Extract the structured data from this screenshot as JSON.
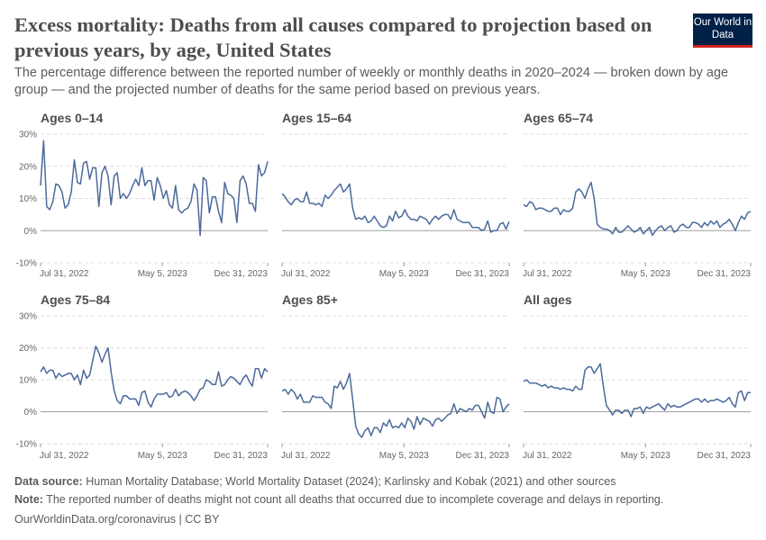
{
  "header": {
    "title": "Excess mortality: Deaths from all causes compared to projection based on previous years, by age, United States",
    "subtitle": "The percentage difference between the reported number of weekly or monthly deaths in 2020–2024 — broken down by age group — and the projected number of deaths for the same period based on previous years.",
    "logo": "Our World in Data"
  },
  "footer": {
    "source_label": "Data source:",
    "source": "Human Mortality Database; World Mortality Dataset (2024); Karlinsky and Kobak (2021) and other sources",
    "note_label": "Note:",
    "note": "The reported number of deaths might not count all deaths that occurred due to incomplete coverage and delays in reporting.",
    "url": "OurWorldinData.org/coronavirus | CC BY"
  },
  "colors": {
    "line": "#4c6a9c",
    "grid": "#dddddd",
    "zero": "#a1a1a1"
  },
  "chart_data": {
    "type": "line",
    "layout": "small-multiples 3x2",
    "ylim": [
      -10,
      30
    ],
    "yticks": [
      -10,
      0,
      10,
      20,
      30
    ],
    "ytick_labels": [
      "-10%",
      "0%",
      "10%",
      "20%",
      "30%"
    ],
    "xlim": [
      "2022-07-31",
      "2023-12-31"
    ],
    "xticks": [
      "2022-07-31",
      "2023-05-05",
      "2023-12-31"
    ],
    "xtick_labels": [
      "Jul 31, 2022",
      "May 5, 2023",
      "Dec 31, 2023"
    ],
    "grid": "horizontal dashed",
    "dates": [
      "2022-07-31",
      "2022-08-07",
      "2022-08-14",
      "2022-08-21",
      "2022-08-28",
      "2022-09-04",
      "2022-09-11",
      "2022-09-18",
      "2022-09-25",
      "2022-10-02",
      "2022-10-09",
      "2022-10-16",
      "2022-10-23",
      "2022-10-30",
      "2022-11-06",
      "2022-11-13",
      "2022-11-20",
      "2022-11-27",
      "2022-12-04",
      "2022-12-11",
      "2022-12-18",
      "2022-12-25",
      "2023-01-01",
      "2023-01-08",
      "2023-01-15",
      "2023-01-22",
      "2023-01-29",
      "2023-02-05",
      "2023-02-12",
      "2023-02-19",
      "2023-02-26",
      "2023-03-05",
      "2023-03-12",
      "2023-03-19",
      "2023-03-26",
      "2023-04-02",
      "2023-04-09",
      "2023-04-16",
      "2023-04-23",
      "2023-04-30",
      "2023-05-07",
      "2023-05-14",
      "2023-05-21",
      "2023-05-28",
      "2023-06-04",
      "2023-06-11",
      "2023-06-18",
      "2023-06-25",
      "2023-07-02",
      "2023-07-09",
      "2023-07-16",
      "2023-07-23",
      "2023-07-30",
      "2023-08-06",
      "2023-08-13",
      "2023-08-20",
      "2023-08-27",
      "2023-09-03",
      "2023-09-10",
      "2023-09-17",
      "2023-09-24",
      "2023-10-01",
      "2023-10-08",
      "2023-10-15",
      "2023-10-22",
      "2023-10-29",
      "2023-11-05",
      "2023-11-12",
      "2023-11-19",
      "2023-11-26",
      "2023-12-03",
      "2023-12-10",
      "2023-12-17",
      "2023-12-24",
      "2023-12-31"
    ],
    "series": [
      {
        "name": "Ages 0–14",
        "values": [
          14,
          28,
          7.5,
          6.5,
          9,
          14.5,
          14,
          12,
          7,
          8,
          12,
          22,
          15,
          14.5,
          21,
          21.5,
          16,
          19.5,
          19.5,
          7.5,
          18,
          20,
          17,
          8,
          17,
          18,
          10,
          11.5,
          10,
          11.5,
          14,
          16,
          14,
          19.5,
          14,
          15.5,
          15.5,
          9.5,
          16.5,
          14,
          10,
          12.5,
          8,
          7,
          14,
          6.5,
          5.5,
          6.5,
          7,
          9,
          14.5,
          12.5,
          -1.5,
          16.5,
          15.5,
          5.5,
          10.5,
          10.5,
          6,
          2.5,
          15,
          11.5,
          11,
          10,
          2.5,
          15.5,
          17,
          14.5,
          8.5,
          8.5,
          6,
          20.5,
          17,
          18,
          21.5
        ]
      },
      {
        "name": "Ages 15–64",
        "values": [
          11.5,
          10.5,
          9,
          8,
          9.5,
          10,
          9,
          9,
          12,
          8.5,
          8.5,
          8,
          8.5,
          7.5,
          11,
          10,
          11,
          12.5,
          13.5,
          14.5,
          12,
          13,
          14.5,
          7,
          3.5,
          4,
          3.5,
          4.5,
          2.5,
          3,
          4.5,
          3,
          1.5,
          1,
          1.5,
          4.5,
          3,
          6,
          4,
          4.5,
          6.5,
          4.5,
          3.5,
          3.5,
          3,
          4.5,
          4,
          3.5,
          2,
          3.5,
          4.5,
          3.5,
          4.5,
          5,
          5,
          3.5,
          6.5,
          3.5,
          3,
          2.5,
          2.5,
          2.5,
          1,
          1,
          1,
          0,
          0.5,
          3,
          -0.5,
          0,
          0,
          2,
          2.5,
          0.5,
          2.8
        ]
      },
      {
        "name": "Ages 65–74",
        "values": [
          8,
          7.5,
          9,
          8.5,
          6.5,
          7,
          7,
          6.5,
          6,
          6,
          7,
          7,
          5,
          6.5,
          6,
          6,
          7,
          12,
          13,
          12,
          10,
          13,
          15,
          10,
          2,
          1,
          0.5,
          0.5,
          0,
          -1,
          1,
          -0.5,
          -0.5,
          0.5,
          1.5,
          0.5,
          -0.5,
          0,
          1,
          -1,
          0,
          1,
          -1.5,
          0,
          1,
          1.5,
          0,
          1,
          1.5,
          -0.5,
          0,
          1.5,
          2,
          1,
          1,
          2.5,
          2.5,
          2,
          1,
          2.5,
          1.5,
          3,
          2,
          3,
          1,
          2,
          2.5,
          3.5,
          2,
          0,
          2.5,
          4.5,
          3.5,
          5.5,
          6
        ]
      },
      {
        "name": "Ages 75–84",
        "values": [
          12.5,
          14,
          12,
          13,
          13,
          10.5,
          12,
          11,
          11.5,
          12,
          12,
          10,
          11.5,
          8.5,
          13,
          10.5,
          11.5,
          16,
          20.5,
          18.5,
          15.5,
          18,
          20,
          12.5,
          6.5,
          3.5,
          2.5,
          5,
          5,
          4,
          4,
          4,
          2,
          6,
          6.5,
          3,
          1.5,
          4,
          5.5,
          5.5,
          5.5,
          6,
          4.5,
          5,
          7,
          5,
          6,
          6.5,
          6,
          5,
          3.5,
          5,
          7,
          7.5,
          10,
          9.5,
          8.5,
          8.5,
          12.5,
          8,
          8.5,
          10,
          11,
          10.5,
          9.5,
          8.5,
          10.5,
          11.5,
          9.5,
          8,
          13.5,
          13.5,
          10.5,
          13.5,
          12.5
        ]
      },
      {
        "name": "Ages 85+",
        "values": [
          6.5,
          7,
          5.5,
          7,
          6,
          4,
          5.5,
          3,
          3,
          3,
          5,
          4.5,
          4.5,
          4.5,
          3,
          2.5,
          1,
          8,
          7.5,
          9.5,
          7,
          9,
          12,
          4,
          -4.5,
          -7,
          -8,
          -6,
          -5,
          -7.5,
          -5,
          -5,
          -6.5,
          -3.5,
          -4.5,
          -2.5,
          -5,
          -4.5,
          -5,
          -3.5,
          -5,
          -2,
          -3,
          -5.5,
          -1.5,
          -4,
          -2,
          -2.5,
          -3,
          -4.5,
          -2.5,
          -2,
          -3,
          -2,
          -1,
          -0.5,
          2.5,
          -0.5,
          1,
          0.5,
          0,
          1,
          0.5,
          2,
          2,
          0,
          -2,
          3,
          0,
          -0.5,
          4.5,
          4,
          0,
          1.5,
          2.5
        ]
      },
      {
        "name": "All ages",
        "values": [
          9.5,
          10,
          9,
          9,
          9,
          8.5,
          8,
          8.5,
          7.5,
          8,
          7.5,
          7.5,
          7,
          7.5,
          7,
          7,
          6.5,
          8,
          7,
          7,
          13,
          14,
          14,
          12,
          13.5,
          15,
          8,
          2,
          0.5,
          -1,
          0.5,
          0.5,
          -0.5,
          0.5,
          0.5,
          -1.5,
          1,
          1,
          1.5,
          -0.5,
          1.5,
          1,
          1.5,
          2,
          2.5,
          1.5,
          0.5,
          2.5,
          1.5,
          2,
          1.5,
          1.5,
          2,
          2.5,
          3,
          3.5,
          4,
          4,
          3,
          4,
          3,
          3.5,
          3.5,
          4,
          3.5,
          3,
          3.5,
          4.5,
          2.5,
          1.5,
          6,
          6.5,
          3.5,
          6,
          6
        ]
      }
    ]
  }
}
